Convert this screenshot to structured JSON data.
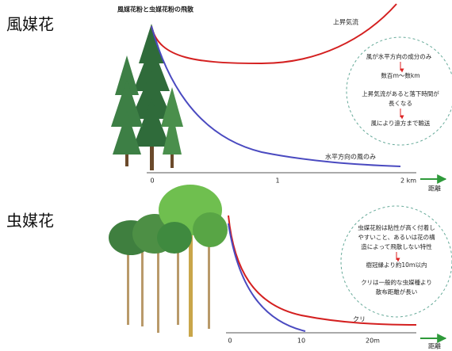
{
  "title": "風媒花粉と虫媒花粉の飛散",
  "wind": {
    "label": "風媒花",
    "updraft": "上昇気流",
    "horizontal": "水平方向の風のみ",
    "note": [
      "風が水平方向の成分のみ",
      "数百ｍ～数km",
      "上昇気流があると落下時間が",
      "長くなる",
      "風により遠方まで輸送"
    ],
    "ticks": [
      "0",
      "1",
      "2 km"
    ],
    "axis_label": "距離"
  },
  "insect": {
    "label": "虫媒花",
    "chestnut": "クリ",
    "note": [
      "虫媒花粉は粘性が高く付着し",
      "やすいこと、あるいは花の構",
      "造によって飛散しない特性",
      "樹冠縁より約10ｍ以内",
      "クリは一般的な虫媒種より",
      "散布距離が長い"
    ],
    "ticks": [
      "0",
      "10",
      "20m"
    ],
    "axis_label": "距離"
  }
}
